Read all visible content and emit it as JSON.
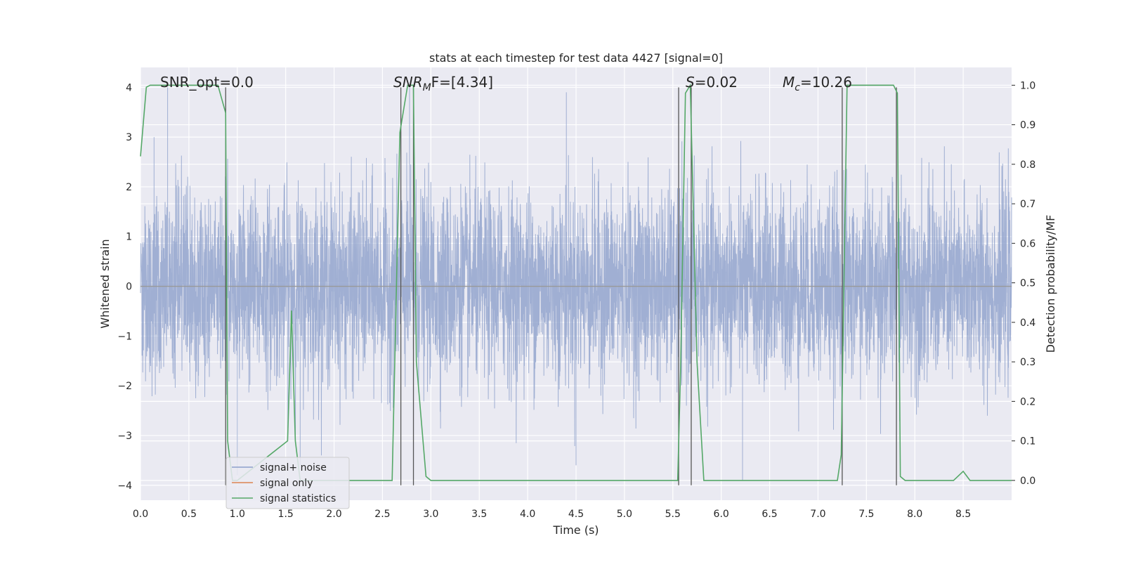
{
  "chart_data": {
    "type": "line",
    "title": "stats at each timestep for test data 4427 [signal=0]",
    "xlabel": "Time (s)",
    "ylabel_left": "Whitened strain",
    "ylabel_right": "Detection probability/MF",
    "xlim": [
      0,
      9
    ],
    "ylim_left": [
      -4.3,
      4.4
    ],
    "ylim_right": [
      -0.05,
      1.045
    ],
    "x_ticks": [
      "0.0",
      "0.5",
      "1.0",
      "1.5",
      "2.0",
      "2.5",
      "3.0",
      "3.5",
      "4.0",
      "4.5",
      "5.0",
      "5.5",
      "6.0",
      "6.5",
      "7.0",
      "7.5",
      "8.0",
      "8.5"
    ],
    "y_ticks_left": [
      "4",
      "3",
      "2",
      "1",
      "0",
      "−1",
      "−2",
      "−3",
      "−4"
    ],
    "y_ticks_right": [
      "1.0",
      "0.9",
      "0.8",
      "0.7",
      "0.6",
      "0.5",
      "0.4",
      "0.3",
      "0.2",
      "0.1",
      "0.0"
    ],
    "grid": true,
    "legend_placement": "lower-left",
    "annotations": {
      "snr_opt": "SNR_opt=0.0",
      "snr_mf_main": "SNR",
      "snr_mf_sub": "M",
      "snr_mf_rest": "F=[4.34]",
      "s_main": "S",
      "s_rest": "=0.02",
      "mc_main": "M",
      "mc_sub": "c",
      "mc_rest": "=10.26"
    },
    "colors": {
      "signal_noise": "#8da0cb",
      "signal_only": "#dd8452",
      "signal_statistics": "#55a868",
      "markers": "#555555",
      "background": "#eaeaf2"
    },
    "series": [
      {
        "name": "signal+ noise",
        "axis": "left",
        "sample_rate_hz": 2048,
        "typical_envelope": [
          -1.7,
          2.5
        ],
        "notable_peaks": [
          [
            0.28,
            4.0
          ],
          [
            0.14,
            3.0
          ],
          [
            1.0,
            -3.8
          ],
          [
            2.78,
            4.0
          ],
          [
            4.4,
            3.9
          ],
          [
            4.5,
            -3.6
          ],
          [
            6.22,
            -3.9
          ],
          [
            1.65,
            -3.6
          ]
        ]
      },
      {
        "name": "signal only",
        "axis": "left",
        "values": "zero"
      },
      {
        "name": "signal statistics",
        "axis": "right",
        "x": [
          0.0,
          0.06,
          0.1,
          0.8,
          0.88,
          0.9,
          0.95,
          1.0,
          1.52,
          1.56,
          1.6,
          1.65,
          1.7,
          2.6,
          2.68,
          2.76,
          2.82,
          2.85,
          2.95,
          3.0,
          5.55,
          5.58,
          5.63,
          5.68,
          5.75,
          5.82,
          7.2,
          7.24,
          7.3,
          7.78,
          7.82,
          7.85,
          7.9,
          8.4,
          8.5,
          8.57,
          9.0
        ],
        "y": [
          0.82,
          0.995,
          1.0,
          1.0,
          0.93,
          0.1,
          0.0,
          0.0,
          0.1,
          0.43,
          0.1,
          0.0,
          0.0,
          0.0,
          0.88,
          1.0,
          1.0,
          0.3,
          0.01,
          0.0,
          0.0,
          0.28,
          0.98,
          1.0,
          0.3,
          0.0,
          0.0,
          0.065,
          1.0,
          1.0,
          0.98,
          0.01,
          0.0,
          0.0,
          0.023,
          0.0,
          0.0
        ]
      }
    ],
    "vertical_markers": [
      0.88,
      2.69,
      2.82,
      5.56,
      5.69,
      7.25,
      7.81
    ],
    "legend": [
      "signal+ noise",
      "signal only",
      "signal statistics"
    ]
  }
}
